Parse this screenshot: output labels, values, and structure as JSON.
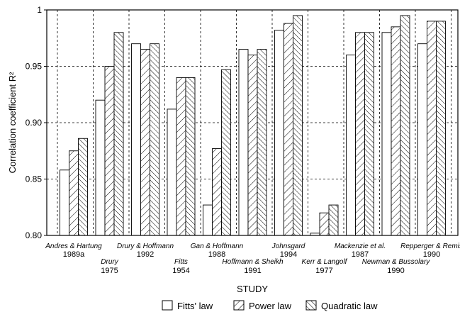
{
  "chart_data": {
    "type": "bar",
    "xlabel": "STUDY",
    "ylabel": "Correlation coefficient R²",
    "ylim": [
      0.8,
      1.0
    ],
    "yticks": [
      "0.80",
      "0.85",
      "0.90",
      "0.95",
      "1"
    ],
    "grid": true,
    "legend_position": "bottom",
    "categories": [
      {
        "name": "Andres & Hartung",
        "year": "1989a",
        "row": "top"
      },
      {
        "name": "Drury",
        "year": "1975",
        "row": "bottom"
      },
      {
        "name": "Drury & Hoffmann",
        "year": "1992",
        "row": "top"
      },
      {
        "name": "Fitts",
        "year": "1954",
        "row": "bottom"
      },
      {
        "name": "Gan & Hoffmann",
        "year": "1988",
        "row": "top"
      },
      {
        "name": "Hoffmann & Sheikh",
        "year": "1991",
        "row": "bottom"
      },
      {
        "name": "Johnsgard",
        "year": "1994",
        "row": "top"
      },
      {
        "name": "Kerr & Langolf",
        "year": "1977",
        "row": "bottom"
      },
      {
        "name": "Mackenzie et al.",
        "year": "1987",
        "row": "top"
      },
      {
        "name": "Newman & Bussolary",
        "year": "1990",
        "row": "bottom"
      },
      {
        "name": "Repperger & Remis",
        "year": "1990",
        "row": "top"
      }
    ],
    "series": [
      {
        "name": "Fitts' law",
        "pattern": "none",
        "values": [
          0.858,
          0.92,
          0.97,
          0.912,
          0.827,
          0.965,
          0.982,
          0.802,
          0.96,
          0.98,
          0.97
        ]
      },
      {
        "name": "Power law",
        "pattern": "backslash-hatch",
        "values": [
          0.875,
          0.95,
          0.965,
          0.94,
          0.877,
          0.96,
          0.988,
          0.82,
          0.98,
          0.985,
          0.99
        ]
      },
      {
        "name": "Quadratic law",
        "pattern": "forward-hatch",
        "values": [
          0.886,
          0.98,
          0.97,
          0.94,
          0.947,
          0.965,
          0.995,
          0.827,
          0.98,
          0.995,
          0.99
        ]
      }
    ]
  }
}
